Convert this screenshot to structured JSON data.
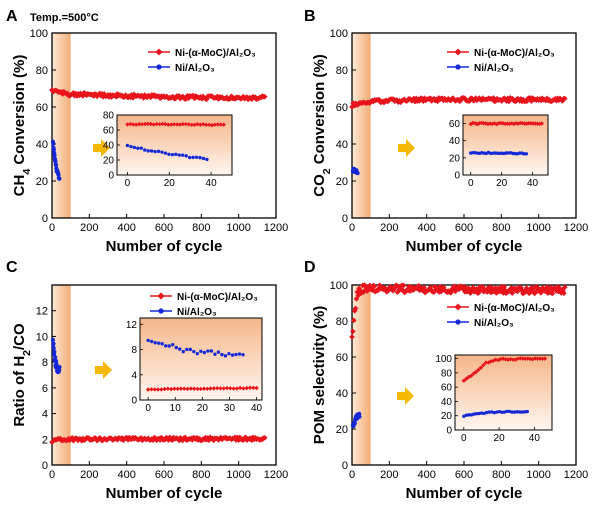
{
  "figure": {
    "annotation": "Temp.=500°C",
    "series_names": {
      "red": "Ni-(α-MoC)/Al₂O₃",
      "blue": "Ni/Al₂O₃"
    },
    "colors": {
      "red": "#e8141c",
      "blue": "#1428d8",
      "arrow": "#f5b800",
      "shade_dark": "#f4b27f",
      "shade_light": "#fdebd9"
    }
  },
  "chart_data": [
    {
      "panel": "A",
      "type": "scatter",
      "xlabel": "Number of cycle",
      "ylabel": "CH4 Conversion (%)",
      "xlim": [
        0,
        1200
      ],
      "xticks": [
        0,
        200,
        400,
        600,
        800,
        1000,
        1200
      ],
      "ylim": [
        0,
        100
      ],
      "yticks": [
        0,
        20,
        40,
        60,
        80,
        100
      ],
      "shaded_region": [
        0,
        100
      ],
      "series": [
        {
          "name": "Ni-(α-MoC)/Al₂O₃",
          "color": "red",
          "x_range": [
            0,
            1140
          ],
          "points": 180,
          "trend": [
            [
              0,
              69
            ],
            [
              30,
              68
            ],
            [
              100,
              67
            ],
            [
              400,
              66
            ],
            [
              800,
              65
            ],
            [
              1140,
              65
            ]
          ],
          "noise": 1.0
        },
        {
          "name": "Ni/Al₂O₃",
          "color": "blue",
          "x_range": [
            5,
            40
          ],
          "points": 22,
          "trend": [
            [
              5,
              41
            ],
            [
              15,
              33
            ],
            [
              25,
              26
            ],
            [
              40,
              21
            ]
          ],
          "noise": 0.8
        }
      ],
      "inset": {
        "xlim": [
          -5,
          50
        ],
        "xticks": [
          0,
          20,
          40
        ],
        "ylim": [
          0,
          80
        ],
        "yticks": [
          0,
          20,
          40,
          60,
          80
        ],
        "series": [
          {
            "color": "red",
            "x_range": [
              0,
              46
            ],
            "points": 34,
            "trend": [
              [
                0,
                68
              ],
              [
                46,
                67
              ]
            ],
            "noise": 0.8
          },
          {
            "color": "blue",
            "x_range": [
              0,
              38
            ],
            "points": 24,
            "trend": [
              [
                0,
                40
              ],
              [
                10,
                33
              ],
              [
                25,
                26
              ],
              [
                38,
                21
              ]
            ],
            "noise": 1.0
          }
        ]
      }
    },
    {
      "panel": "B",
      "type": "scatter",
      "xlabel": "Number of cycle",
      "ylabel": "CO2 Conversion (%)",
      "xlim": [
        0,
        1200
      ],
      "xticks": [
        0,
        200,
        400,
        600,
        800,
        1000,
        1200
      ],
      "ylim": [
        0,
        100
      ],
      "yticks": [
        0,
        20,
        40,
        60,
        80,
        100
      ],
      "shaded_region": [
        0,
        100
      ],
      "series": [
        {
          "name": "Ni-(α-MoC)/Al₂O₃",
          "color": "red",
          "x_range": [
            0,
            1140
          ],
          "points": 180,
          "trend": [
            [
              0,
              61
            ],
            [
              100,
              63
            ],
            [
              400,
              64
            ],
            [
              1140,
              64
            ]
          ],
          "noise": 1.0
        },
        {
          "name": "Ni/Al₂O₃",
          "color": "blue",
          "x_range": [
            5,
            30
          ],
          "points": 18,
          "trend": [
            [
              5,
              26
            ],
            [
              30,
              25
            ]
          ],
          "noise": 0.8
        }
      ],
      "inset": {
        "xlim": [
          -5,
          50
        ],
        "xticks": [
          0,
          20,
          40
        ],
        "ylim": [
          0,
          70
        ],
        "yticks": [
          0,
          20,
          40,
          60
        ],
        "series": [
          {
            "color": "red",
            "x_range": [
              0,
              46
            ],
            "points": 34,
            "trend": [
              [
                0,
                60
              ],
              [
                46,
                60
              ]
            ],
            "noise": 0.8
          },
          {
            "color": "blue",
            "x_range": [
              0,
              36
            ],
            "points": 26,
            "trend": [
              [
                0,
                26
              ],
              [
                36,
                25
              ]
            ],
            "noise": 0.6
          }
        ]
      }
    },
    {
      "panel": "C",
      "type": "scatter",
      "xlabel": "Number of cycle",
      "ylabel": "Ratio of H2/CO",
      "xlim": [
        0,
        1200
      ],
      "xticks": [
        0,
        200,
        400,
        600,
        800,
        1000,
        1200
      ],
      "ylim": [
        0,
        14
      ],
      "yticks": [
        0,
        2,
        4,
        6,
        8,
        10,
        12
      ],
      "shaded_region": [
        0,
        100
      ],
      "series": [
        {
          "name": "Ni-(α-MoC)/Al₂O₃",
          "color": "red",
          "x_range": [
            0,
            1140
          ],
          "points": 180,
          "trend": [
            [
              0,
              1.8
            ],
            [
              50,
              2.0
            ],
            [
              1140,
              2.05
            ]
          ],
          "noise": 0.12
        },
        {
          "name": "Ni/Al₂O₃",
          "color": "blue",
          "x_range": [
            5,
            40
          ],
          "points": 24,
          "trend": [
            [
              5,
              9.8
            ],
            [
              15,
              8.3
            ],
            [
              25,
              7.6
            ],
            [
              40,
              7.4
            ]
          ],
          "noise": 0.35
        }
      ],
      "inset": {
        "xlim": [
          -3,
          42
        ],
        "xticks": [
          0,
          10,
          20,
          30,
          40
        ],
        "ylim": [
          0,
          13
        ],
        "yticks": [
          0,
          4,
          8,
          12
        ],
        "series": [
          {
            "color": "red",
            "x_range": [
              0,
              40
            ],
            "points": 34,
            "trend": [
              [
                0,
                1.7
              ],
              [
                40,
                1.9
              ]
            ],
            "noise": 0.06
          },
          {
            "color": "blue",
            "x_range": [
              0,
              35
            ],
            "points": 28,
            "trend": [
              [
                0,
                9.8
              ],
              [
                10,
                8.3
              ],
              [
                20,
                7.5
              ],
              [
                35,
                7.3
              ]
            ],
            "noise": 0.4
          }
        ]
      }
    },
    {
      "panel": "D",
      "type": "scatter",
      "xlabel": "Number of cycle",
      "ylabel": "POM selectivity (%)",
      "xlim": [
        0,
        1200
      ],
      "xticks": [
        0,
        200,
        400,
        600,
        800,
        1000,
        1200
      ],
      "ylim": [
        0,
        100
      ],
      "yticks": [
        0,
        20,
        40,
        60,
        80,
        100
      ],
      "shaded_region": [
        0,
        100
      ],
      "series": [
        {
          "name": "Ni-(α-MoC)/Al₂O₃",
          "color": "red",
          "x_range": [
            0,
            1140
          ],
          "points": 240,
          "trend": [
            [
              0,
              70
            ],
            [
              15,
              85
            ],
            [
              30,
              96
            ],
            [
              60,
              98
            ],
            [
              1140,
              97
            ]
          ],
          "noise": 2.0
        },
        {
          "name": "Ni/Al₂O₃",
          "color": "blue",
          "x_range": [
            5,
            40
          ],
          "points": 22,
          "trend": [
            [
              5,
              21
            ],
            [
              20,
              26
            ],
            [
              40,
              28
            ]
          ],
          "noise": 1.5
        }
      ],
      "inset": {
        "xlim": [
          -5,
          50
        ],
        "xticks": [
          0,
          20,
          40
        ],
        "ylim": [
          0,
          105
        ],
        "yticks": [
          0,
          20,
          40,
          60,
          80,
          100
        ],
        "series": [
          {
            "color": "red",
            "x_range": [
              0,
              46
            ],
            "points": 34,
            "trend": [
              [
                0,
                68
              ],
              [
                5,
                78
              ],
              [
                12,
                93
              ],
              [
                20,
                99
              ],
              [
                46,
                100
              ]
            ],
            "noise": 1.0
          },
          {
            "color": "blue",
            "x_range": [
              0,
              36
            ],
            "points": 26,
            "trend": [
              [
                0,
                20
              ],
              [
                15,
                25
              ],
              [
                36,
                26
              ]
            ],
            "noise": 0.8
          }
        ]
      }
    }
  ]
}
